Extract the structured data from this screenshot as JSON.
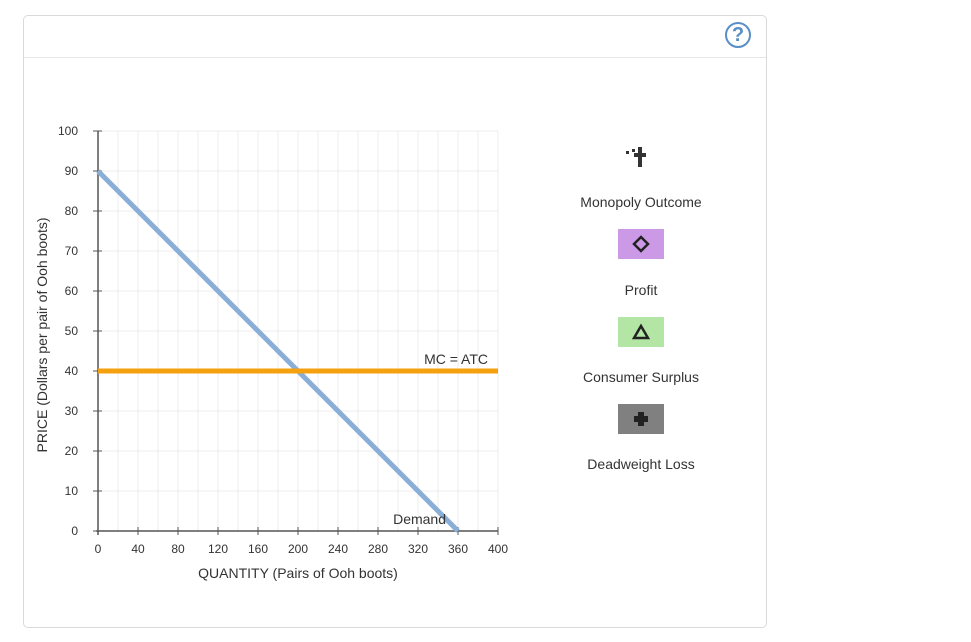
{
  "help": {
    "label": "?"
  },
  "tools": {
    "monopoly_outcome": {
      "label": "Monopoly Outcome"
    },
    "profit": {
      "label": "Profit",
      "color": "#cc99e6"
    },
    "consumer_surplus": {
      "label": "Consumer Surplus",
      "color": "#b3e6a5"
    },
    "deadweight_loss": {
      "label": "Deadweight Loss",
      "color": "#808080"
    }
  },
  "chart_data": {
    "type": "line",
    "xlabel": "QUANTITY (Pairs of Ooh boots)",
    "ylabel": "PRICE (Dollars per pair of Ooh boots)",
    "xlim": [
      0,
      400
    ],
    "ylim": [
      0,
      100
    ],
    "x_ticks": [
      0,
      40,
      80,
      120,
      160,
      200,
      240,
      280,
      320,
      360,
      400
    ],
    "y_ticks": [
      0,
      10,
      20,
      30,
      40,
      50,
      60,
      70,
      80,
      90,
      100
    ],
    "grid": true,
    "series": [
      {
        "name": "Demand",
        "color": "#8aafd6",
        "points": [
          [
            0,
            90
          ],
          [
            360,
            0
          ]
        ]
      },
      {
        "name": "MC = ATC",
        "color": "#f5a00f",
        "points": [
          [
            0,
            40
          ],
          [
            400,
            40
          ]
        ]
      }
    ]
  }
}
